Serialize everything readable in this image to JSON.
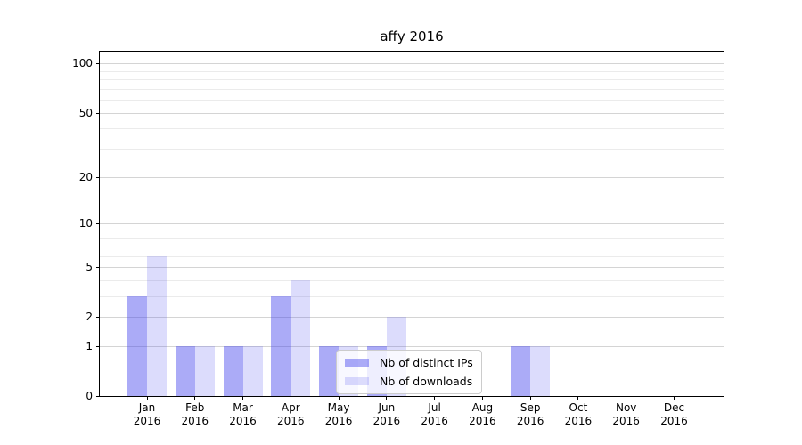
{
  "chart_data": {
    "type": "bar",
    "title": "affy 2016",
    "xlabel": "",
    "ylabel": "",
    "categories": [
      "Jan",
      "Feb",
      "Mar",
      "Apr",
      "May",
      "Jun",
      "Jul",
      "Aug",
      "Sep",
      "Oct",
      "Nov",
      "Dec"
    ],
    "x_ticks": [
      {
        "month": "Jan",
        "year": "2016"
      },
      {
        "month": "Feb",
        "year": "2016"
      },
      {
        "month": "Mar",
        "year": "2016"
      },
      {
        "month": "Apr",
        "year": "2016"
      },
      {
        "month": "May",
        "year": "2016"
      },
      {
        "month": "Jun",
        "year": "2016"
      },
      {
        "month": "Jul",
        "year": "2016"
      },
      {
        "month": "Aug",
        "year": "2016"
      },
      {
        "month": "Sep",
        "year": "2016"
      },
      {
        "month": "Oct",
        "year": "2016"
      },
      {
        "month": "Nov",
        "year": "2016"
      },
      {
        "month": "Dec",
        "year": "2016"
      }
    ],
    "series": [
      {
        "name": "Nb of distinct IPs",
        "color": "#4444ee",
        "alpha": 0.45,
        "values": [
          3,
          1,
          1,
          3,
          1,
          1,
          0,
          0,
          1,
          0,
          0,
          0
        ]
      },
      {
        "name": "Nb of downloads",
        "color": "#4444ee",
        "alpha": 0.19,
        "values": [
          6,
          1,
          1,
          4,
          1,
          2,
          0,
          0,
          1,
          0,
          0,
          0
        ]
      }
    ],
    "y_axis": {
      "scale": "log1p",
      "major_ticks": [
        0,
        1,
        2,
        5,
        10,
        20,
        50,
        100
      ],
      "minor_ticks": [
        3,
        4,
        6,
        7,
        8,
        9,
        30,
        40,
        60,
        70,
        80,
        90
      ],
      "ylim": [
        0,
        118
      ]
    },
    "legend": {
      "position": "lower center"
    },
    "grid": {
      "major_color": "#d4d4d4",
      "minor_color": "#ebebeb"
    }
  }
}
